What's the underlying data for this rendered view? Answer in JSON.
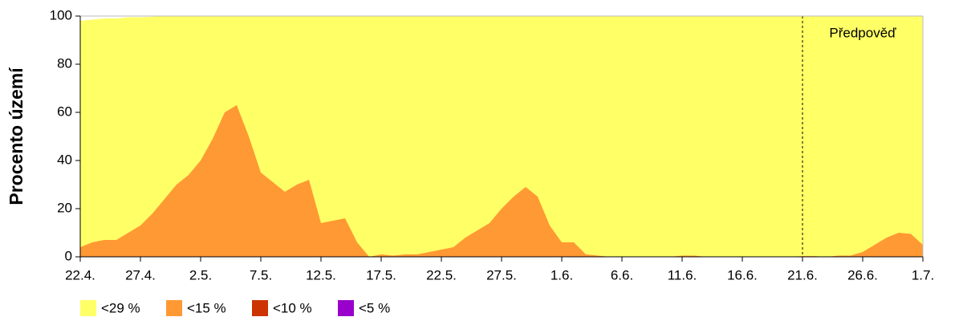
{
  "chart_data": {
    "type": "area",
    "ylabel": "Procento území",
    "categories": [
      "22.4.",
      null,
      null,
      null,
      null,
      "27.4.",
      null,
      null,
      null,
      null,
      "2.5.",
      null,
      null,
      null,
      null,
      "7.5.",
      null,
      null,
      null,
      null,
      "12.5.",
      null,
      null,
      null,
      null,
      "17.5.",
      null,
      null,
      null,
      null,
      "22.5.",
      null,
      null,
      null,
      null,
      "27.5.",
      null,
      null,
      null,
      null,
      "1.6.",
      null,
      null,
      null,
      null,
      "6.6.",
      null,
      null,
      null,
      null,
      "11.6.",
      null,
      null,
      null,
      null,
      "16.6.",
      null,
      null,
      null,
      null,
      "21.6.",
      null,
      null,
      null,
      null,
      "26.6.",
      null,
      null,
      null,
      null,
      "1.7."
    ],
    "series": [
      {
        "name": "<29 %",
        "color": "#ffff66",
        "values": [
          98,
          98.5,
          99,
          99,
          99.5,
          99.5,
          99.7,
          100,
          100,
          100,
          100,
          100,
          100,
          100,
          100,
          100,
          100,
          100,
          100,
          100,
          100,
          100,
          100,
          100,
          100,
          100,
          100,
          100,
          100,
          100,
          100,
          100,
          100,
          100,
          100,
          100,
          100,
          100,
          100,
          100,
          100,
          100,
          100,
          100,
          100,
          100,
          100,
          100,
          100,
          100,
          100,
          100,
          100,
          100,
          100,
          100,
          100,
          100,
          100,
          100,
          100,
          100,
          100,
          100,
          100,
          100,
          100,
          100,
          100,
          100,
          100
        ]
      },
      {
        "name": "<15 %",
        "color": "#ff9933",
        "values": [
          4,
          6,
          7,
          7,
          10,
          13,
          18,
          24,
          30,
          34,
          40,
          49,
          60,
          63,
          50,
          35,
          31,
          27,
          30,
          32,
          14,
          15,
          16,
          6,
          0,
          1,
          0.5,
          1,
          1,
          2,
          3,
          4,
          8,
          11,
          14,
          20,
          25,
          29,
          25,
          13,
          6,
          6,
          1,
          0.5,
          0,
          0,
          0,
          0,
          0,
          0,
          0.5,
          0.5,
          0,
          0,
          0,
          0,
          0,
          0,
          0,
          0,
          0.3,
          0.3,
          0,
          0.5,
          0.5,
          2,
          5,
          8,
          10,
          9.5,
          5
        ]
      },
      {
        "name": "<10 %",
        "color": "#cc3300",
        "values": [
          0,
          0,
          0,
          0,
          0,
          0,
          0,
          0,
          0,
          0,
          0,
          0,
          0,
          0,
          0,
          0,
          0,
          0,
          0,
          0,
          0,
          0,
          0,
          0,
          0,
          0,
          0,
          0,
          0,
          0,
          0,
          0,
          0,
          0,
          0,
          0,
          0,
          0,
          0,
          0,
          0,
          0,
          0,
          0,
          0,
          0,
          0,
          0,
          0,
          0,
          0,
          0,
          0,
          0,
          0,
          0,
          0,
          0,
          0,
          0,
          0,
          0,
          0,
          0,
          0,
          0,
          0,
          0,
          0,
          0,
          0
        ]
      },
      {
        "name": "<5 %",
        "color": "#9900cc",
        "values": [
          0,
          0,
          0,
          0,
          0,
          0,
          0,
          0,
          0,
          0,
          0,
          0,
          0,
          0,
          0,
          0,
          0,
          0,
          0,
          0,
          0,
          0,
          0,
          0,
          0,
          0,
          0,
          0,
          0,
          0,
          0,
          0,
          0,
          0,
          0,
          0,
          0,
          0,
          0,
          0,
          0,
          0,
          0,
          0,
          0,
          0,
          0,
          0,
          0,
          0,
          0,
          0,
          0,
          0,
          0,
          0,
          0,
          0,
          0,
          0,
          0,
          0,
          0,
          0,
          0,
          0,
          0,
          0,
          0,
          0,
          0
        ]
      }
    ],
    "ylim": [
      0,
      100
    ],
    "yticks": [
      0,
      20,
      40,
      60,
      80,
      100
    ],
    "forecast": {
      "label": "Předpověď",
      "x": "21.6."
    }
  }
}
